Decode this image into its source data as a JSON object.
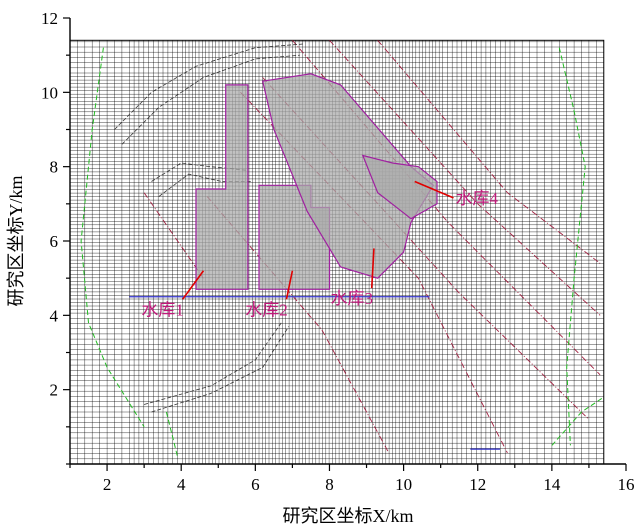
{
  "chart_data": {
    "type": "map",
    "xlabel": "研究区坐标X/km",
    "ylabel": "研究区坐标Y/km",
    "xlim": [
      1,
      16
    ],
    "ylim": [
      0,
      12
    ],
    "xticks": [
      2,
      4,
      6,
      8,
      10,
      12,
      14,
      16
    ],
    "yticks": [
      2,
      4,
      6,
      8,
      10,
      12
    ],
    "grid": "dense irregular mesh",
    "grid_extent": {
      "x": [
        1,
        15.4
      ],
      "y": [
        0,
        11.4
      ]
    },
    "colors": {
      "reservoir_fill": "#a9a9a9",
      "reservoir_edge": "#a020a0",
      "leader_line": "#e00000",
      "label": "#c0187a",
      "boundary": "#22bb22",
      "fault": "#a02040",
      "baseline": "#3333cc",
      "mesh": "#000000"
    },
    "reservoirs": [
      {
        "label": "水库1",
        "polygon": [
          [
            4.4,
            7.4
          ],
          [
            5.2,
            7.4
          ],
          [
            5.2,
            10.2
          ],
          [
            5.8,
            10.2
          ],
          [
            5.8,
            4.7
          ],
          [
            4.4,
            4.7
          ]
        ],
        "anchor": [
          4.6,
          5.2
        ],
        "label_pos": [
          3.5,
          4.0
        ]
      },
      {
        "label": "水库2",
        "polygon": [
          [
            6.1,
            4.7
          ],
          [
            6.1,
            7.5
          ],
          [
            7.5,
            7.5
          ],
          [
            7.5,
            6.9
          ],
          [
            8.0,
            6.9
          ],
          [
            8.0,
            4.7
          ]
        ],
        "anchor": [
          7.0,
          5.2
        ],
        "label_pos": [
          6.3,
          4.0
        ]
      },
      {
        "label": "水库3",
        "polygon": [
          [
            6.2,
            10.3
          ],
          [
            7.5,
            10.5
          ],
          [
            8.3,
            10.2
          ],
          [
            10.2,
            8.0
          ],
          [
            10.8,
            7.5
          ],
          [
            10.2,
            6.5
          ],
          [
            10.0,
            5.7
          ],
          [
            9.3,
            5.0
          ],
          [
            8.3,
            5.3
          ],
          [
            7.4,
            6.8
          ],
          [
            6.5,
            9.0
          ]
        ],
        "anchor": [
          9.2,
          5.8
        ],
        "label_pos": [
          8.6,
          4.3
        ]
      },
      {
        "label": "水库4",
        "polygon": [
          [
            8.9,
            8.3
          ],
          [
            9.7,
            8.1
          ],
          [
            10.4,
            8.0
          ],
          [
            10.9,
            7.6
          ],
          [
            10.9,
            7.0
          ],
          [
            10.2,
            6.6
          ],
          [
            9.3,
            7.3
          ]
        ],
        "anchor": [
          10.3,
          7.6
        ],
        "label_pos": [
          11.4,
          7.0
        ]
      }
    ]
  }
}
